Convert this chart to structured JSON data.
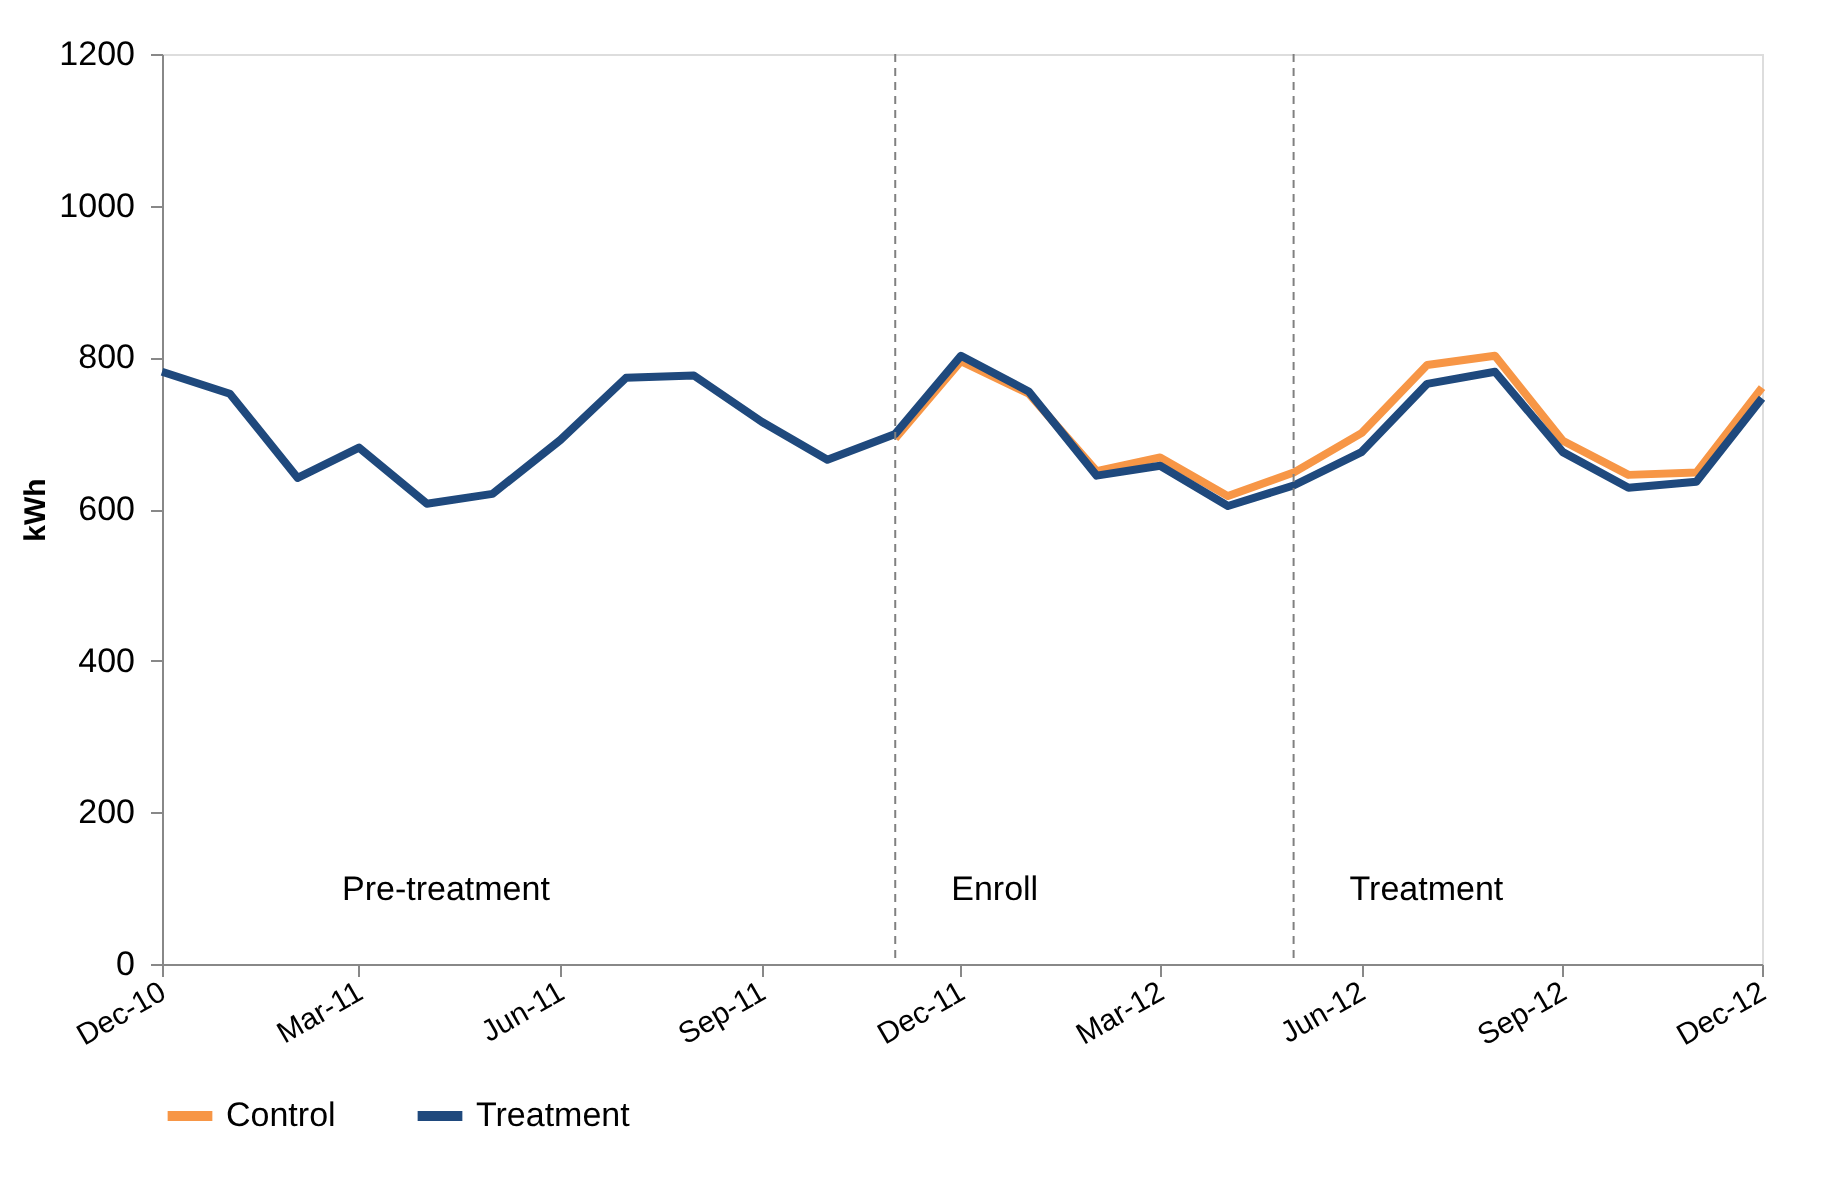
{
  "chart_data": {
    "type": "line",
    "ylabel": "kWh",
    "x": [
      "2010-12",
      "2011-01",
      "2011-02",
      "2011-03",
      "2011-04",
      "2011-05",
      "2011-06",
      "2011-07",
      "2011-08",
      "2011-09",
      "2011-10",
      "2011-11",
      "2011-12",
      "2012-01",
      "2012-02",
      "2012-03",
      "2012-04",
      "2012-05",
      "2012-06",
      "2012-07",
      "2012-08",
      "2012-09",
      "2012-10",
      "2012-11",
      "2012-12"
    ],
    "series": [
      {
        "name": "Control",
        "color": "#f79646",
        "values": [
          null,
          null,
          null,
          null,
          null,
          null,
          null,
          null,
          null,
          null,
          null,
          693,
          795,
          752,
          650,
          668,
          617,
          648,
          700,
          790,
          802,
          690,
          645,
          648,
          760
        ]
      },
      {
        "name": "Treatment",
        "color": "#1f497d",
        "values": [
          781,
          752,
          641,
          681,
          607,
          620,
          691,
          773,
          776,
          715,
          665,
          699,
          802,
          755,
          644,
          657,
          604,
          631,
          675,
          765,
          781,
          675,
          628,
          636,
          746
        ]
      }
    ],
    "xlim": [
      "2010-12",
      "2012-12"
    ],
    "xticks": [
      {
        "value": "2010-12",
        "label": "Dec-10"
      },
      {
        "value": "2011-03",
        "label": "Mar-11"
      },
      {
        "value": "2011-06",
        "label": "Jun-11"
      },
      {
        "value": "2011-09",
        "label": "Sep-11"
      },
      {
        "value": "2011-12",
        "label": "Dec-11"
      },
      {
        "value": "2012-03",
        "label": "Mar-12"
      },
      {
        "value": "2012-06",
        "label": "Jun-12"
      },
      {
        "value": "2012-09",
        "label": "Sep-12"
      },
      {
        "value": "2012-12",
        "label": "Dec-12"
      }
    ],
    "ylim": [
      0,
      1200
    ],
    "yticks": [
      0,
      200,
      400,
      600,
      800,
      {
        "value": 1000,
        "label": "1000"
      },
      {
        "value": 1200,
        "label": "1200"
      }
    ],
    "ref_lines": [
      {
        "axis": "x",
        "value": "2011-11",
        "color": "#808080",
        "line_style": "dashed"
      },
      {
        "axis": "x",
        "value": "2012-05",
        "color": "#808080",
        "line_style": "dashed"
      }
    ],
    "annotations": [
      "Pre-treatment",
      "Enroll",
      "Treatment"
    ],
    "grid": false,
    "legend": "bottom",
    "marker": "none",
    "line_style": "solid"
  }
}
